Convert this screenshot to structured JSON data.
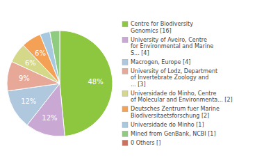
{
  "chart_data": {
    "type": "pie",
    "categories": [
      "Centre for Biodiversity\nGenomics [16]",
      "University of Aveiro, Centre\nfor Environmental and Marine\nS... [4]",
      "Macrogen, Europe [4]",
      "University of Lodz, Department\nof Invertebrate Zoology and\n... [3]",
      "Universidade do Minho, Centre\nof Molecular and Environmenta... [2]",
      "Deutsches Zentrum fuer Marine\nBiodiversitaetsforschung [2]",
      "Universidade do Minho [1]",
      "Mined from GenBank, NCBI [1]",
      "0 Others []"
    ],
    "values": [
      48,
      12,
      12,
      9,
      6,
      6,
      3,
      3,
      0
    ],
    "value_labels": [
      "48%",
      "12%",
      "12%",
      "9%",
      "6%",
      "6%",
      null,
      null,
      null
    ],
    "colors": [
      "#8dc63f",
      "#c9a8d4",
      "#b0c8de",
      "#e8a898",
      "#d4d888",
      "#f4a055",
      "#a8c8e0",
      "#90cc80",
      "#cc7060"
    ],
    "data_labels": true,
    "legend": "right"
  }
}
